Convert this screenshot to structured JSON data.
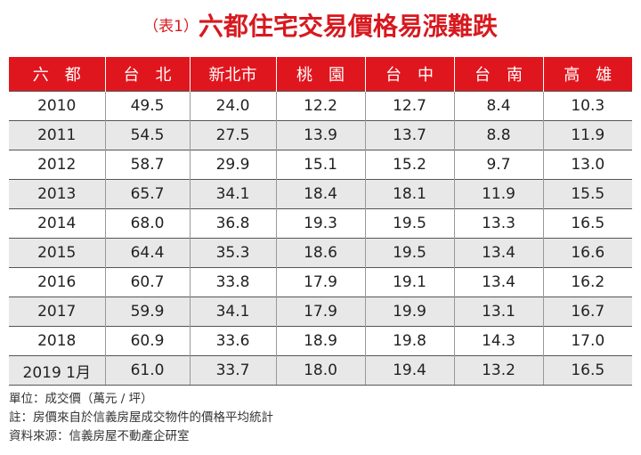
{
  "title": {
    "prefix": "（表1）",
    "text": "六都住宅交易價格易漲難跌"
  },
  "table": {
    "header": [
      "六　都",
      "台　北",
      "新北市",
      "桃　園",
      "台　中",
      "台　南",
      "高　雄"
    ],
    "rows": [
      [
        "2010",
        "49.5",
        "24.0",
        "12.2",
        "12.7",
        "8.4",
        "10.3"
      ],
      [
        "2011",
        "54.5",
        "27.5",
        "13.9",
        "13.7",
        "8.8",
        "11.9"
      ],
      [
        "2012",
        "58.7",
        "29.9",
        "15.1",
        "15.2",
        "9.7",
        "13.0"
      ],
      [
        "2013",
        "65.7",
        "34.1",
        "18.4",
        "18.1",
        "11.9",
        "15.5"
      ],
      [
        "2014",
        "68.0",
        "36.8",
        "19.3",
        "19.5",
        "13.3",
        "16.5"
      ],
      [
        "2015",
        "64.4",
        "35.3",
        "18.6",
        "19.5",
        "13.4",
        "16.6"
      ],
      [
        "2016",
        "60.7",
        "33.8",
        "17.9",
        "19.1",
        "13.4",
        "16.2"
      ],
      [
        "2017",
        "59.9",
        "34.1",
        "17.9",
        "19.9",
        "13.1",
        "16.7"
      ],
      [
        "2018",
        "60.9",
        "33.6",
        "18.9",
        "19.8",
        "14.3",
        "17.0"
      ],
      [
        "2019 1月",
        "61.0",
        "33.7",
        "18.0",
        "19.4",
        "13.2",
        "16.5"
      ]
    ]
  },
  "notes": [
    "單位：成交價（萬元 / 坪）",
    "註：房價來自於信義房屋成交物件的價格平均統計",
    "資料來源：信義房屋不動產企研室"
  ]
}
